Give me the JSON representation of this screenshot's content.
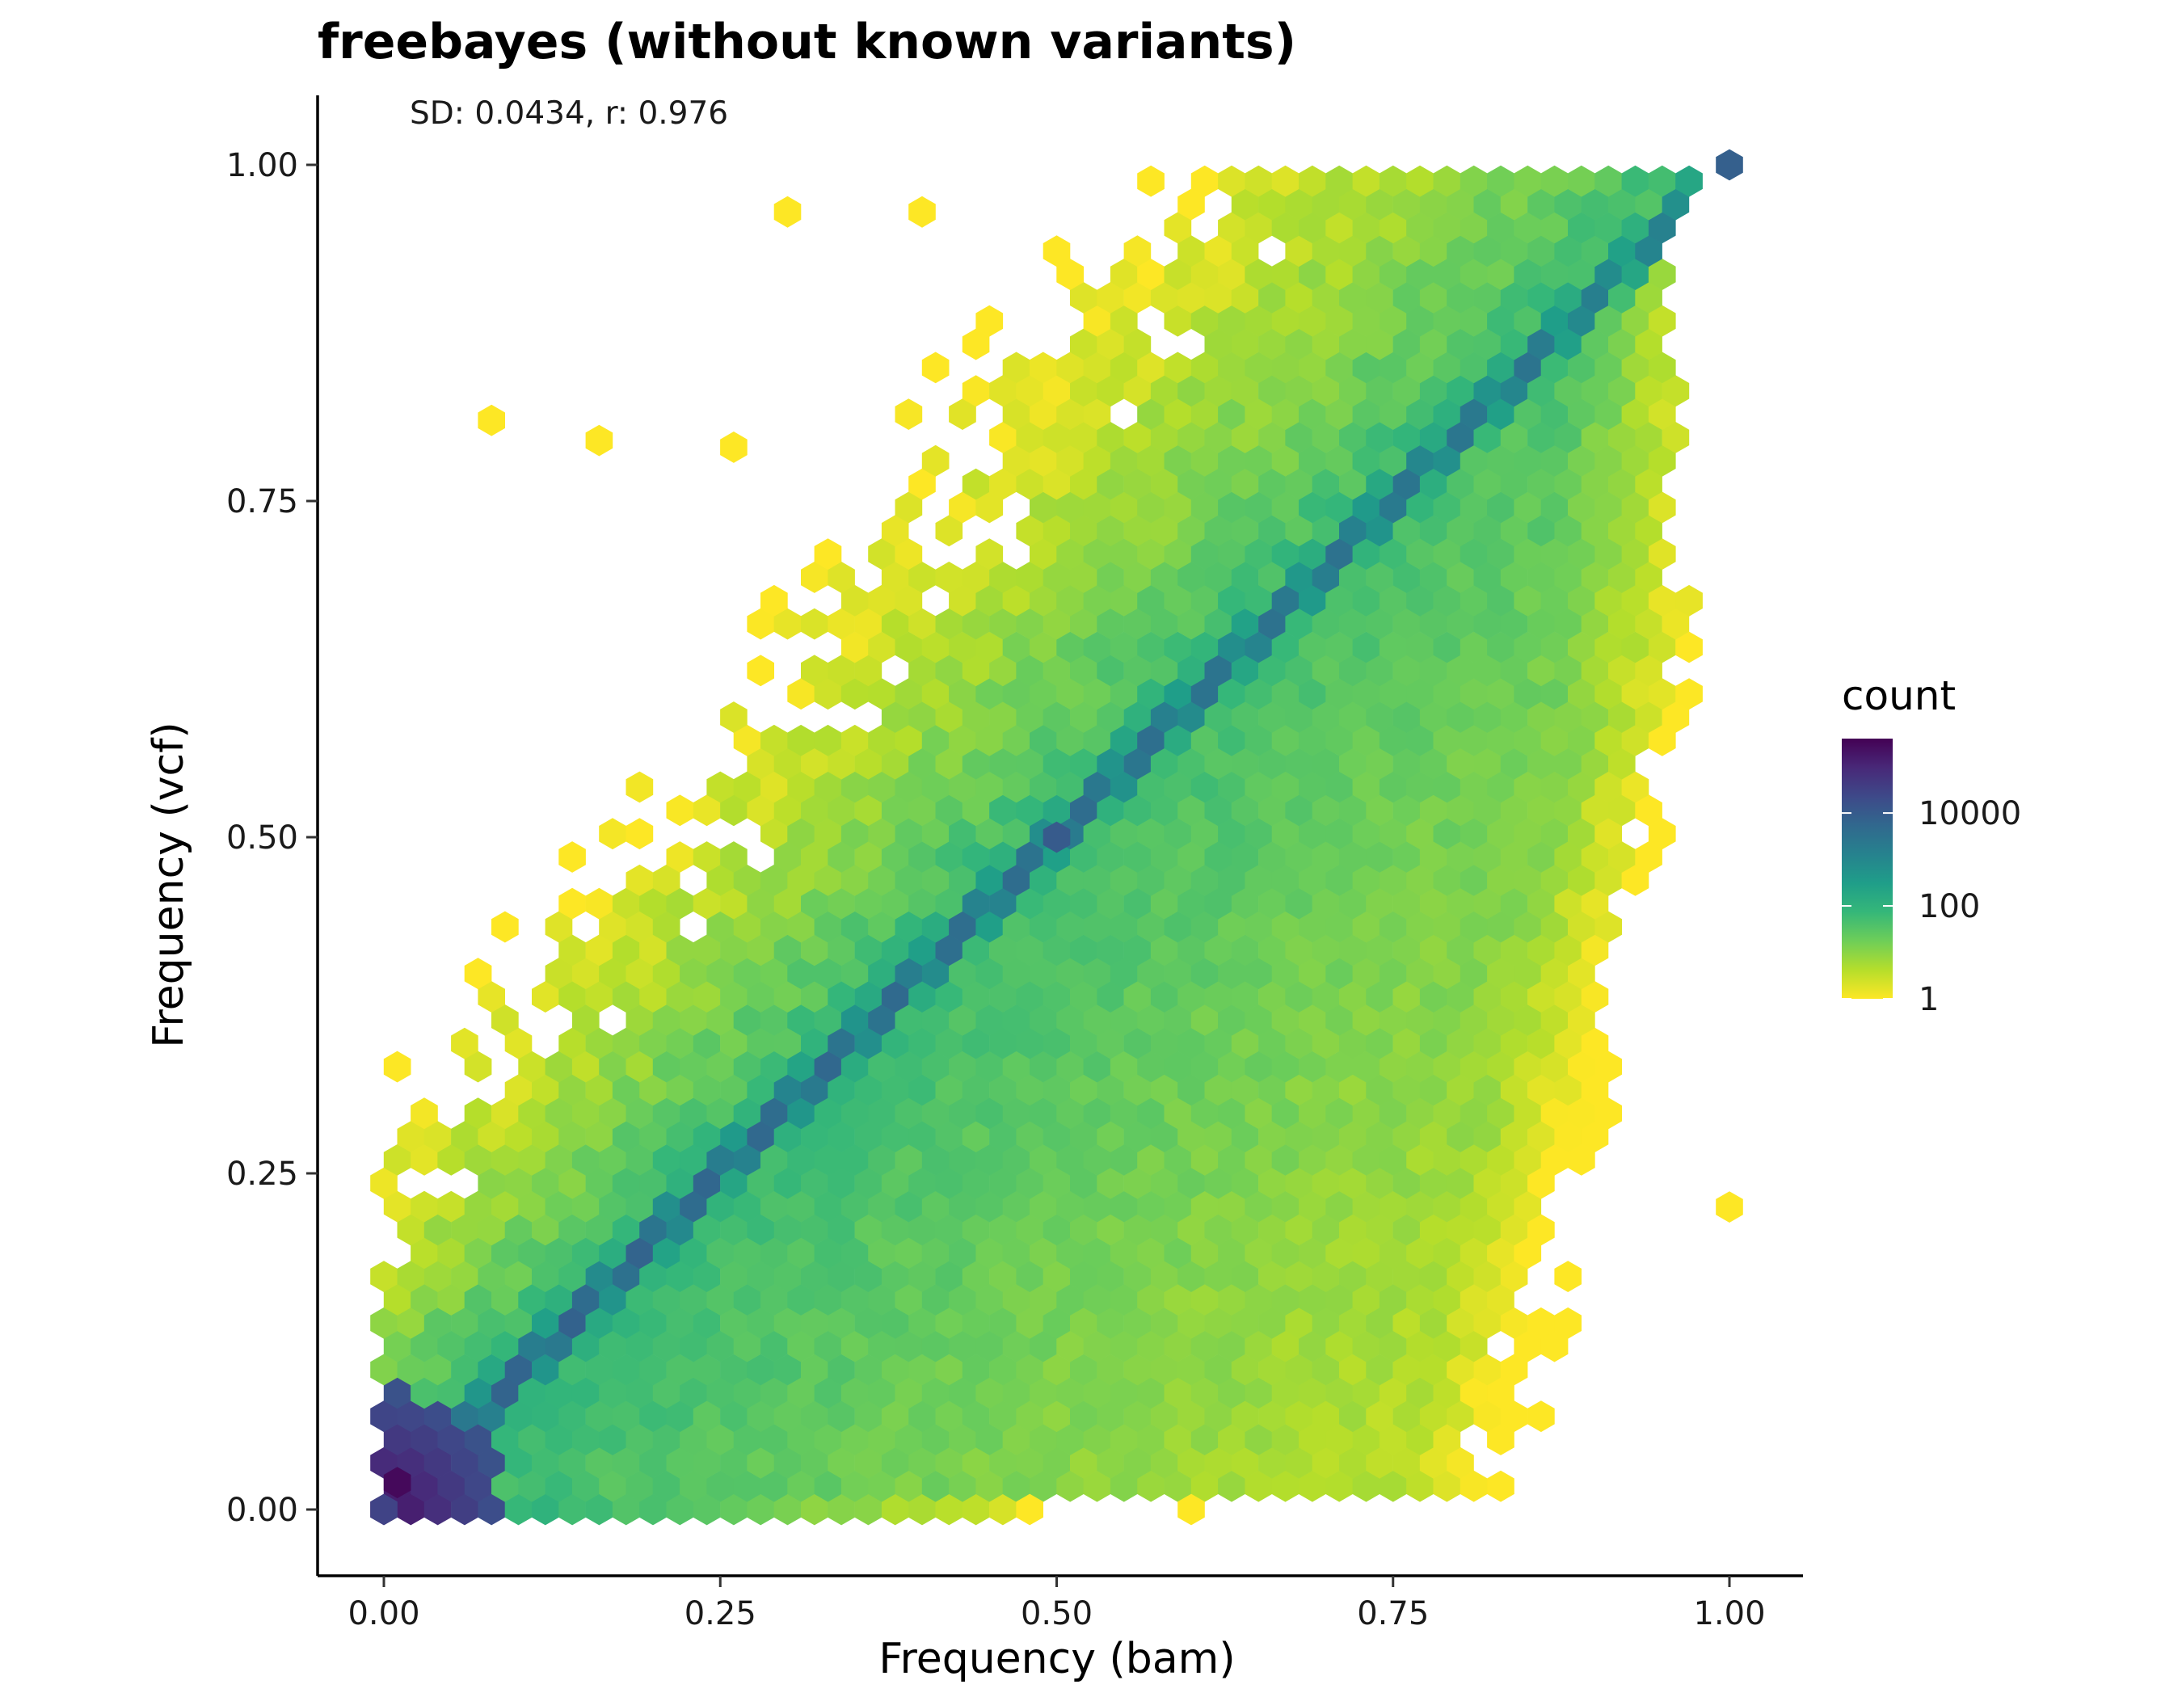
{
  "chart_data": {
    "type": "hexbin",
    "title": "freebayes (without known variants)",
    "annotation": "SD: 0.0434, r: 0.976",
    "xlabel": "Frequency (bam)",
    "ylabel": "Frequency (vcf)",
    "xlim": [
      -0.045,
      1.045
    ],
    "ylim": [
      -0.05,
      1.05
    ],
    "x_ticks": [
      0.0,
      0.25,
      0.5,
      0.75,
      1.0
    ],
    "x_tick_labels": [
      "0.00",
      "0.25",
      "0.50",
      "0.75",
      "1.00"
    ],
    "y_ticks": [
      0.0,
      0.25,
      0.5,
      0.75,
      1.0
    ],
    "y_tick_labels": [
      "0.00",
      "0.25",
      "0.50",
      "0.75",
      "1.00"
    ],
    "grid": false,
    "legend": {
      "title": "count",
      "position": "right",
      "scale": "log10",
      "breaks": [
        1,
        100,
        10000
      ],
      "break_labels": [
        "1",
        "100",
        "10000"
      ],
      "range": [
        1,
        400000
      ],
      "colormap": "viridis",
      "colors": [
        "#fde725",
        "#b5de2b",
        "#6ece58",
        "#35b779",
        "#1f9e89",
        "#26828e",
        "#31688e",
        "#3e4989",
        "#482878",
        "#440154"
      ]
    },
    "series": [
      {
        "name": "count",
        "description_of_distribution": "points concentrated along the diagonal y = x (counts up to ~1e5 near the origin), with spread below the diagonal filling the lower-right triangle and sparse low-count bins above the diagonal toward the upper-left",
        "peak_bins": [
          {
            "x": 0.01,
            "y": 0.02,
            "count": 300000
          },
          {
            "x": 0.0,
            "y": 0.0,
            "count": 30000
          },
          {
            "x": 0.5,
            "y": 0.5,
            "count": 10000
          },
          {
            "x": 1.0,
            "y": 1.0,
            "count": 8000
          }
        ],
        "isolated_bins": [
          {
            "x": 0.3,
            "y": 0.965,
            "count": 1
          },
          {
            "x": 0.4,
            "y": 0.965,
            "count": 1
          },
          {
            "x": 0.08,
            "y": 0.81,
            "count": 1
          },
          {
            "x": 0.16,
            "y": 0.795,
            "count": 1
          },
          {
            "x": 0.26,
            "y": 0.79,
            "count": 1
          },
          {
            "x": 0.6,
            "y": 0.0,
            "count": 1
          },
          {
            "x": 0.48,
            "y": 0.0,
            "count": 1
          },
          {
            "x": 1.0,
            "y": 0.225,
            "count": 1
          }
        ]
      }
    ]
  }
}
